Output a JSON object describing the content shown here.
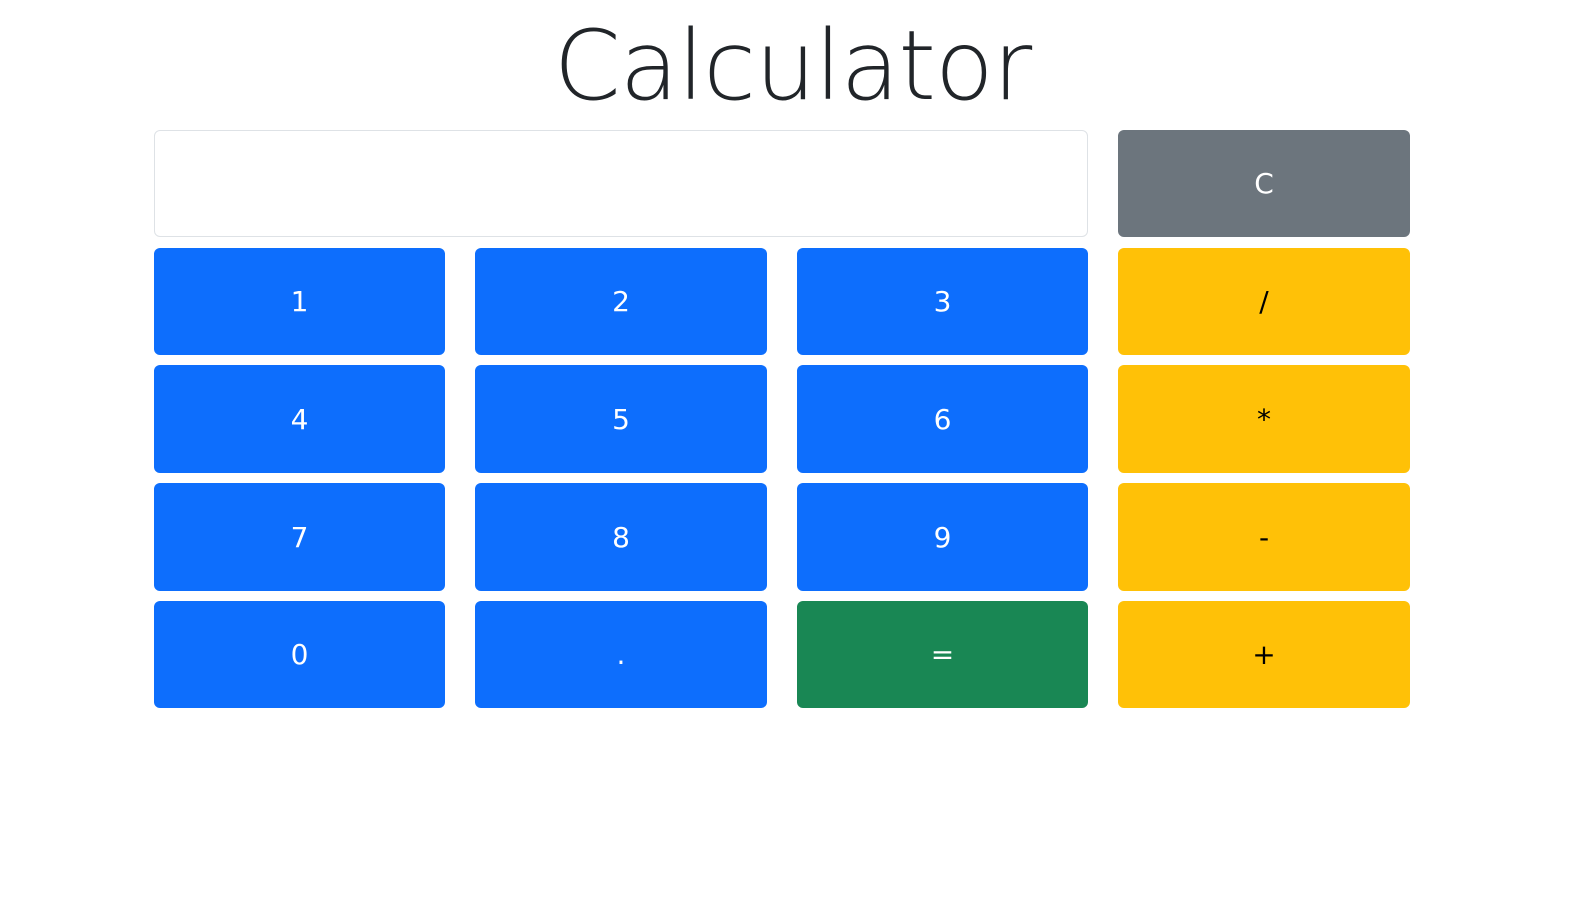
{
  "title": "Calculator",
  "display": {
    "value": "",
    "placeholder": ""
  },
  "buttons": {
    "clear": "C",
    "one": "1",
    "two": "2",
    "three": "3",
    "divide": "/",
    "four": "4",
    "five": "5",
    "six": "6",
    "multiply": "*",
    "seven": "7",
    "eight": "8",
    "nine": "9",
    "subtract": "-",
    "zero": "0",
    "decimal": ".",
    "equals": "=",
    "add": "+"
  },
  "colors": {
    "digit": "#0d6efd",
    "clear": "#6c757d",
    "operator": "#ffc107",
    "equals": "#198754"
  }
}
